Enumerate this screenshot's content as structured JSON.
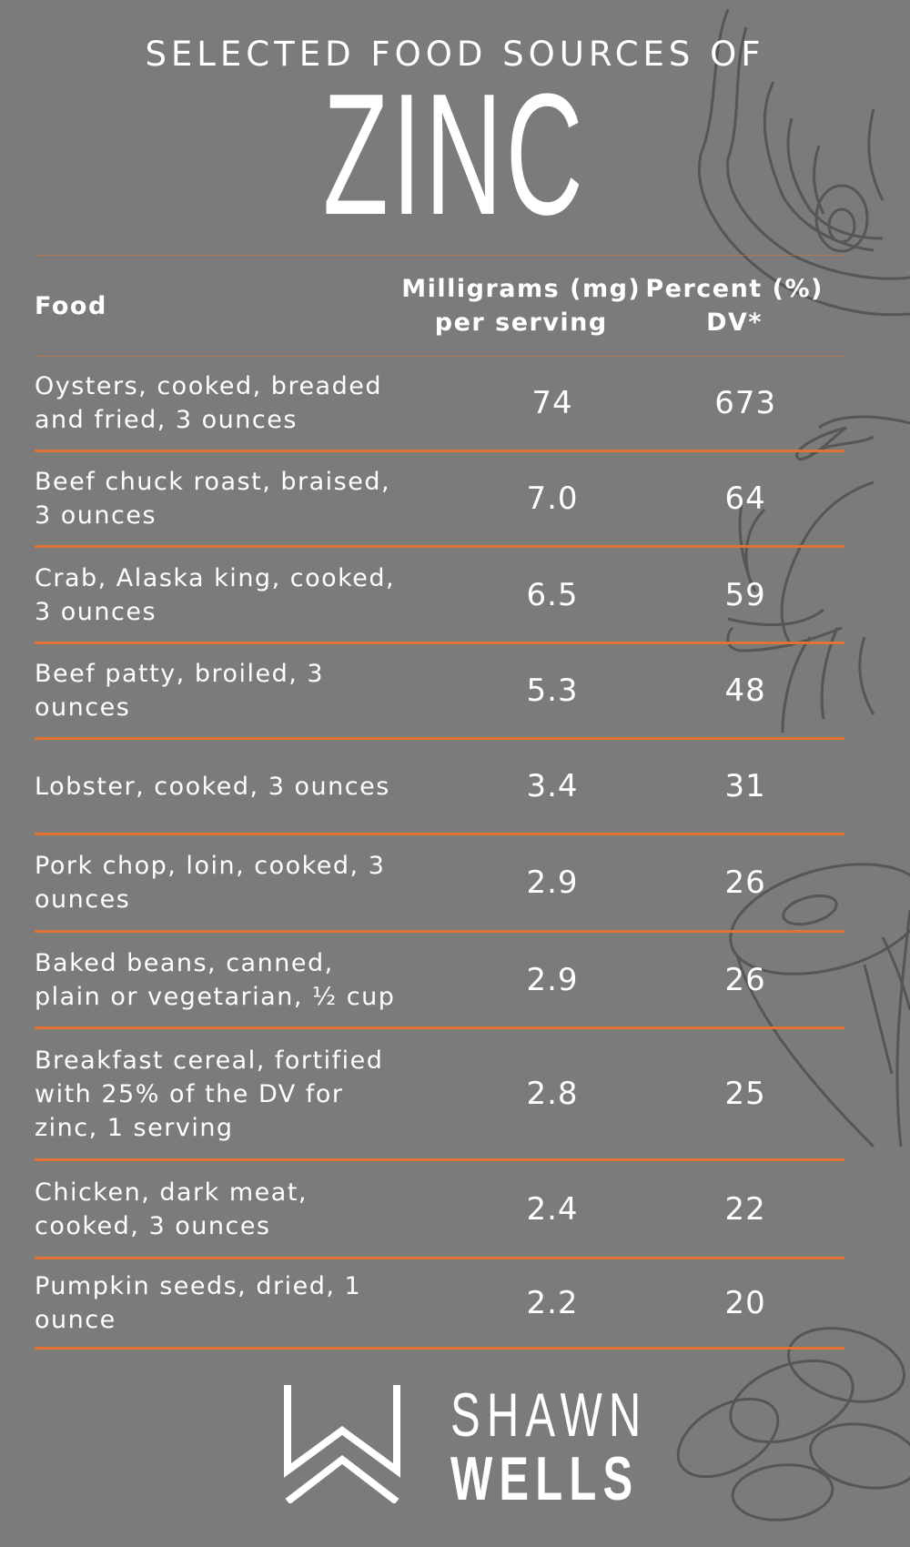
{
  "header": {
    "subtitle": "SELECTED FOOD SOURCES OF",
    "title": "ZINC"
  },
  "table": {
    "columns": [
      "Food",
      "Milligrams (mg) per serving",
      "Percent (%) DV*"
    ],
    "rows": [
      {
        "food": "Oysters, cooked, breaded and fried, 3 ounces",
        "mg": "74",
        "dv": "673"
      },
      {
        "food": "Beef chuck roast, braised, 3 ounces",
        "mg": "7.0",
        "dv": "64"
      },
      {
        "food": "Crab, Alaska king, cooked, 3 ounces",
        "mg": "6.5",
        "dv": "59"
      },
      {
        "food": "Beef patty, broiled, 3 ounces",
        "mg": "5.3",
        "dv": "48"
      },
      {
        "food": "Lobster, cooked, 3 ounces",
        "mg": "3.4",
        "dv": "31"
      },
      {
        "food": "Pork chop, loin, cooked, 3 ounces",
        "mg": "2.9",
        "dv": "26"
      },
      {
        "food": "Baked beans, canned, plain or vegetarian, ½ cup",
        "mg": "2.9",
        "dv": "26"
      },
      {
        "food": "Breakfast cereal, fortified with 25% of the DV for zinc, 1 serving",
        "mg": "2.8",
        "dv": "25"
      },
      {
        "food": "Chicken, dark meat, cooked, 3 ounces",
        "mg": "2.4",
        "dv": "22"
      },
      {
        "food": "Pumpkin seeds, dried, 1 ounce",
        "mg": "2.2",
        "dv": "20"
      }
    ]
  },
  "brand": {
    "line1": "SHAWN",
    "line2": "WELLS",
    "logo_icon": "w-chevron-logo-icon"
  },
  "colors": {
    "background": "#7a7b7a",
    "accent": "#e07232",
    "text": "#ffffff",
    "illustration": "#5a5b5a"
  }
}
